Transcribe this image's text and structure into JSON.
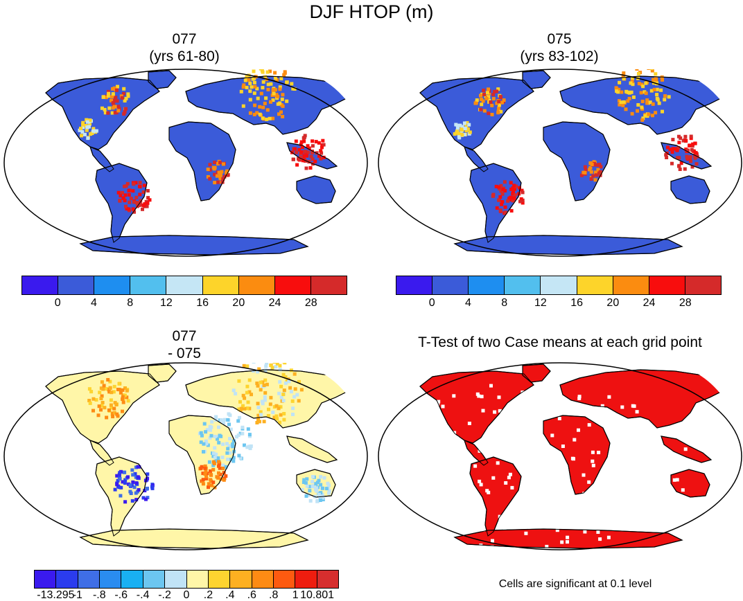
{
  "title": "DJF HTOP (m)",
  "panels": [
    {
      "title_line1": "077",
      "title_line2": "(yrs 61-80)",
      "fill": "#3b5bd9"
    },
    {
      "title_line1": "075",
      "title_line2": "(yrs 83-102)",
      "fill": "#3b5bd9"
    },
    {
      "title_line1": "077",
      "title_line2": "- 075",
      "fill": "#fff6a8"
    },
    {
      "title_line1": "T-Test of two Case means at each grid point",
      "title_line2": "",
      "fill": "#ee1111"
    }
  ],
  "colorbar_top": {
    "colors": [
      "#3a1aee",
      "#3b5bd9",
      "#1e8ef0",
      "#52bfee",
      "#c5e6f5",
      "#fdd42a",
      "#fb8c10",
      "#f80d0d",
      "#d52a2a"
    ],
    "labels": [
      "0",
      "4",
      "8",
      "12",
      "16",
      "20",
      "24",
      "28"
    ]
  },
  "colorbar_diff": {
    "colors": [
      "#3a1aee",
      "#2b3cee",
      "#3f6ee6",
      "#2a8cf0",
      "#19b0f2",
      "#6cc6f0",
      "#c0e3f6",
      "#fff6a8",
      "#fdd430",
      "#fdb021",
      "#fd8b14",
      "#fd5a10",
      "#ee1d0f",
      "#d62e2e"
    ],
    "labels": [
      "-13.295",
      "-1",
      "-.8",
      "-.6",
      "-.4",
      "-.2",
      "0",
      ".2",
      ".4",
      ".6",
      ".8",
      "1",
      "10.801"
    ]
  },
  "significance_note": "Cells are significant at 0.1 level"
}
